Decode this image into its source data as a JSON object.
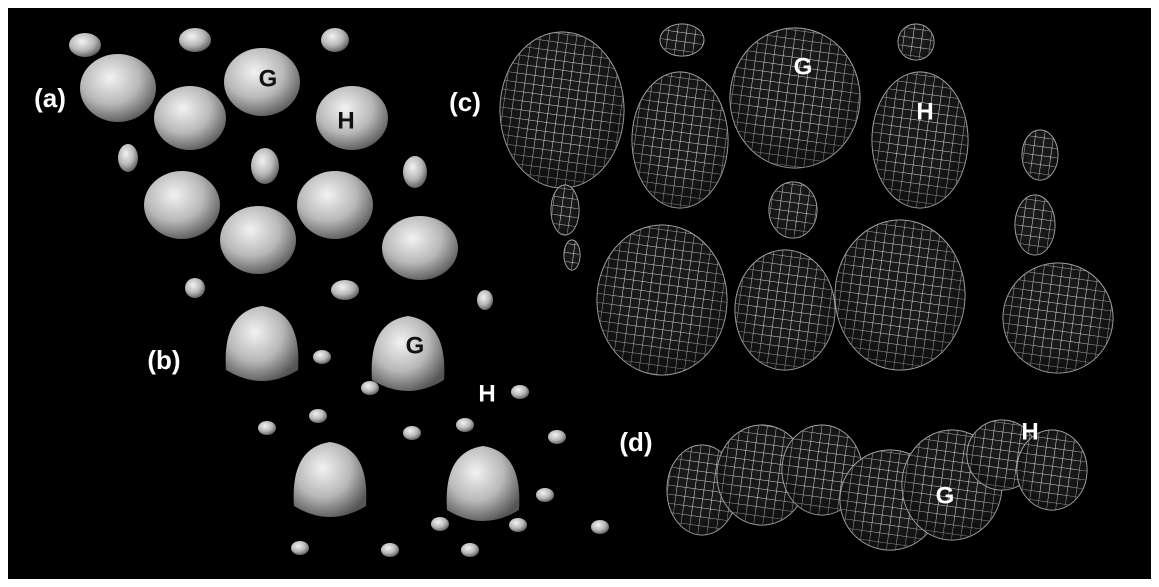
{
  "panels": [
    {
      "label": "(a)",
      "annotations": [
        "G",
        "H"
      ]
    },
    {
      "label": "(b)",
      "annotations": [
        "G",
        "H"
      ]
    },
    {
      "label": "(c)",
      "annotations": [
        "G",
        "H"
      ]
    },
    {
      "label": "(d)",
      "annotations": [
        "G",
        "H"
      ]
    }
  ]
}
